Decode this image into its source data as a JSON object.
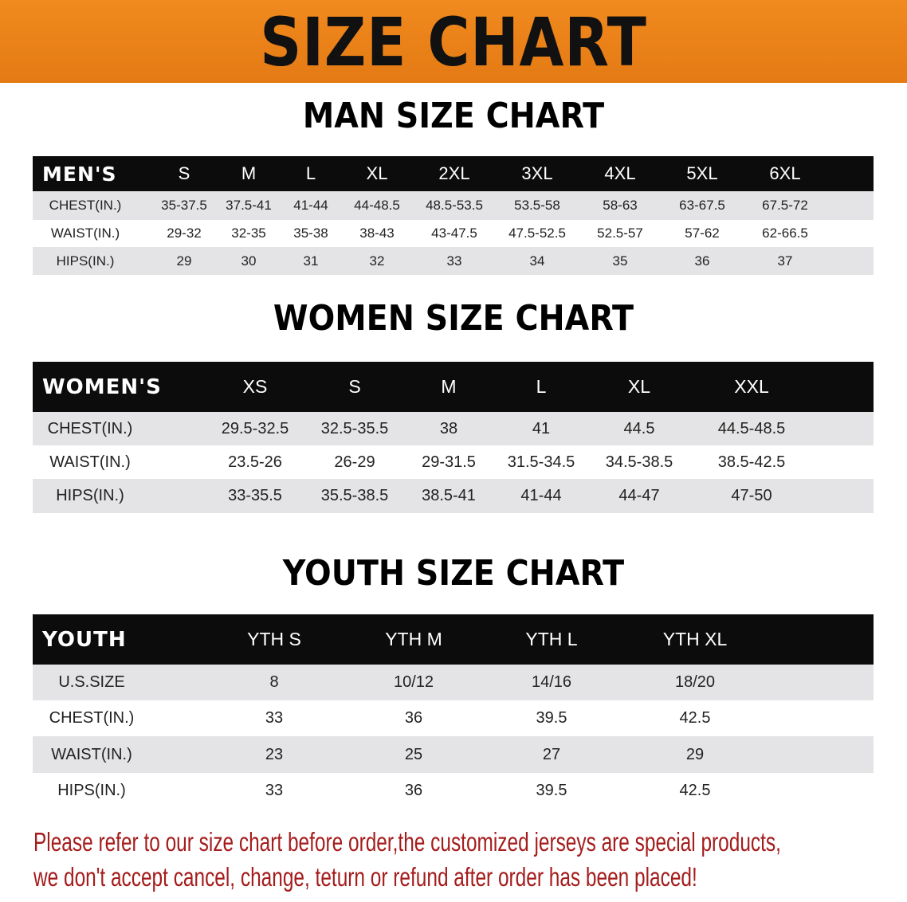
{
  "banner": {
    "title": "SIZE CHART",
    "color": "#e8801a"
  },
  "men": {
    "title": "MAN SIZE CHART",
    "header": [
      "MEN'S",
      "S",
      "M",
      "L",
      "XL",
      "2XL",
      "3XL",
      "4XL",
      "5XL",
      "6XL"
    ],
    "rows": [
      [
        "CHEST(IN.)",
        "35-37.5",
        "37.5-41",
        "41-44",
        "44-48.5",
        "48.5-53.5",
        "53.5-58",
        "58-63",
        "63-67.5",
        "67.5-72"
      ],
      [
        "WAIST(IN.)",
        "29-32",
        "32-35",
        "35-38",
        "38-43",
        "43-47.5",
        "47.5-52.5",
        "52.5-57",
        "57-62",
        "62-66.5"
      ],
      [
        "HIPS(IN.)",
        "29",
        "30",
        "31",
        "32",
        "33",
        "34",
        "35",
        "36",
        "37"
      ]
    ]
  },
  "women": {
    "title": "WOMEN SIZE CHART",
    "header": [
      "WOMEN'S",
      "XS",
      "S",
      "M",
      "L",
      "XL",
      "XXL"
    ],
    "rows": [
      [
        "CHEST(IN.)",
        "29.5-32.5",
        "32.5-35.5",
        "38",
        "41",
        "44.5",
        "44.5-48.5"
      ],
      [
        "WAIST(IN.)",
        "23.5-26",
        "26-29",
        "29-31.5",
        "31.5-34.5",
        "34.5-38.5",
        "38.5-42.5"
      ],
      [
        "HIPS(IN.)",
        "33-35.5",
        "35.5-38.5",
        "38.5-41",
        "41-44",
        "44-47",
        "47-50"
      ]
    ]
  },
  "youth": {
    "title": "YOUTH SIZE CHART",
    "header": [
      "YOUTH",
      "YTH S",
      "YTH M",
      "YTH L",
      "YTH XL"
    ],
    "rows": [
      [
        "U.S.SIZE",
        "8",
        "10/12",
        "14/16",
        "18/20"
      ],
      [
        "CHEST(IN.)",
        "33",
        "36",
        "39.5",
        "42.5"
      ],
      [
        "WAIST(IN.)",
        "23",
        "25",
        "27",
        "29"
      ],
      [
        "HIPS(IN.)",
        "33",
        "36",
        "39.5",
        "42.5"
      ]
    ]
  },
  "notice": {
    "line1": "Please refer to our size chart before order,the customized jerseys are special products,",
    "line2": "we don't accept cancel, change, teturn or refund after order has been placed!",
    "color": "#a51c1c"
  }
}
